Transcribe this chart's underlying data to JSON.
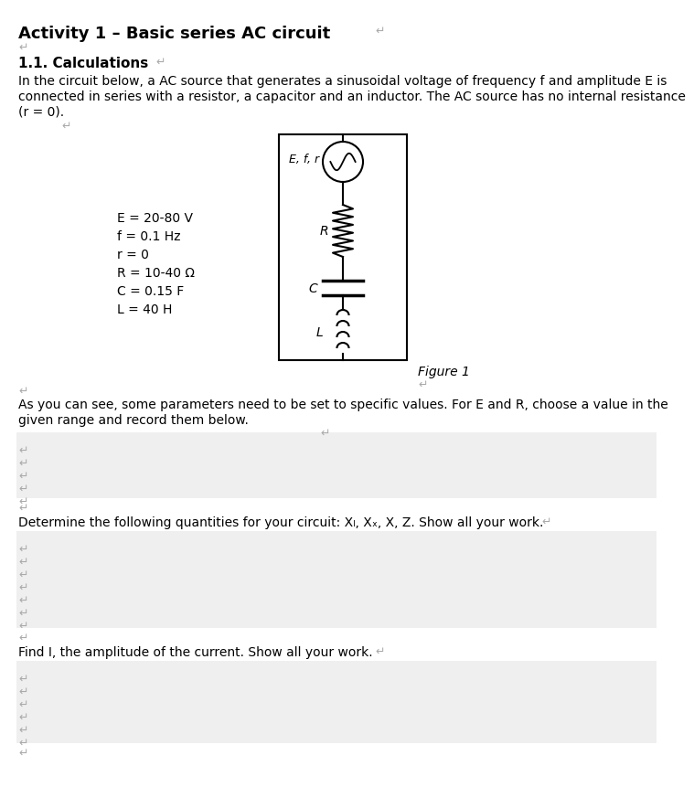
{
  "title": "Activity 1 – Basic series AC circuit",
  "section": "1.1. Calculations",
  "intro_text": "In the circuit below, a AC source that generates a sinusoidal voltage of frequency f and amplitude E is\nconnected in series with a resistor, a capacitor and an inductor. The AC source has no internal resistance\n(r = 0).",
  "params": [
    "E = 20-80 V",
    "f = 0.1 Hz",
    "r = 0",
    "R = 10-40 Ω",
    "C = 0.15 F",
    "L = 40 H"
  ],
  "figure_label": "Figure 1",
  "paragraph2": "As you can see, some parameters need to be set to specific values. For E and R, choose a value in the\ngiven range and record them below.",
  "paragraph3": "Determine the following quantities for your circuit: Xₗ, Xₓ, X, Z. Show all your work.",
  "paragraph4": "Find I, the amplitude of the current. Show all your work.",
  "bg_color": "#ffffff",
  "box_color": "#efefef",
  "text_color": "#000000",
  "return_char_color": "#aaaaaa"
}
